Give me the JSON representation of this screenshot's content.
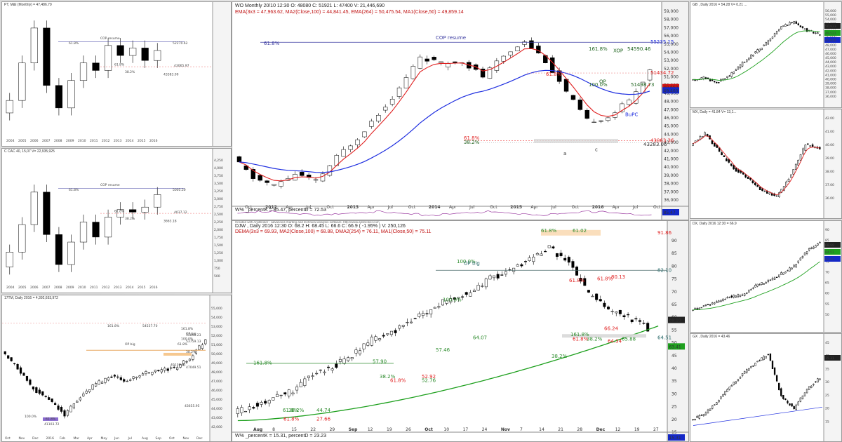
{
  "colors": {
    "red": "#e02020",
    "blue": "#1f2fe0",
    "green": "#1ea01e",
    "candle_down": "#000000",
    "candle_up": "#ffffff",
    "price_tag_blue": "#1428c8",
    "price_tag_green": "#1ea01e",
    "price_tag_red": "#d01414",
    "price_tag_black": "#222222"
  },
  "main_top": {
    "header_line1": "WO Monthly 20/10 12:30 O: 48080  C: 51921  L: 47400  V: 21,446,690",
    "header_line2": "EMA(3x3 = 47,963.62,  MA2(Close,100) = 44,841.45,  EMA(264) = 50,475.54,  MA1(Close,50) = 49,859.14",
    "indicator_label": "W% _percentK = 85.47, percentD = 72.53",
    "indicator_values": [
      "85.47",
      "72.53"
    ],
    "y_ticks": [
      "59,000",
      "58,000",
      "57,000",
      "56,000",
      "55,000",
      "54,000",
      "53,000",
      "52,000",
      "51,000",
      "50,000",
      "49,000",
      "48,000",
      "47,000",
      "46,000",
      "45,000",
      "44,000",
      "43,000",
      "42,000",
      "41,000",
      "40,000",
      "39,000",
      "38,000",
      "37,000",
      "36,000"
    ],
    "x_labels": [
      "Oct",
      "2012",
      "Apr",
      "Jul",
      "Oct",
      "2013",
      "Apr",
      "Jul",
      "Oct",
      "2014",
      "Apr",
      "Jul",
      "Oct",
      "2015",
      "Apr",
      "Jul",
      "Oct",
      "2016",
      "Apr",
      "Jul",
      "Oct"
    ],
    "price_tags": [
      "55235.15",
      "51434.72",
      "49,650",
      "49,460",
      "43063.36",
      "43283.06"
    ],
    "annotations": [
      "COP resume",
      "61.8%",
      "161.8%",
      "XOP",
      "54590.46",
      "61.8%",
      "OP",
      "100.0%",
      "51498.73",
      "BuPC",
      "61.8%",
      "38.2%",
      "a",
      "c",
      "42.90"
    ]
  },
  "main_bottom": {
    "header_line1": "DJW , Daily 2016 12:30 O: 68.2  H: 68.45  L: 66.6  C: 66.9 ( -1.95% )  V: 250,126",
    "header_line2": "DEMA(3x3 = 69.93,  MA2(Close,100) = 68.88,  DMA2(254) = 76.11,  MA1(Close,50) = 75.11",
    "note": "Created with AmiBroker - advanced charting and technical analysis software. http://www.amibroker.com",
    "indicator_label": "W% _percentK = 15.31, percentD = 23.23",
    "y_ticks": [
      "90",
      "85",
      "80",
      "75",
      "70",
      "65",
      "60",
      "55",
      "50",
      "45",
      "40",
      "35",
      "30",
      "25",
      "20",
      "15"
    ],
    "x_labels": [
      "Aug",
      "8",
      "15",
      "22",
      "29",
      "Sep",
      "12",
      "19",
      "26",
      "Oct",
      "10",
      "17",
      "24",
      "Nov",
      "7",
      "14",
      "21",
      "28",
      "Dec",
      "12",
      "19",
      "27"
    ],
    "price_tags": [
      "91.86",
      "82.10",
      "69.10",
      "64.51",
      "63.41",
      "15.31"
    ],
    "annotations": [
      "61.8%",
      "61.02",
      "100.0%",
      "OP big",
      "61.8%",
      "80.13",
      "61.8%",
      "66.24",
      "161.8%",
      "61.8%",
      "38.2%",
      "64.34",
      "65.88",
      "100.0%",
      "64.07",
      "38.2%",
      "57.46",
      "61.8%",
      "52.76",
      "161.8%",
      "57.90",
      "38.2%",
      "52.92",
      "61.8%",
      "27.66",
      "44.74",
      "38.2%",
      "61.8%"
    ]
  },
  "left_panels": [
    {
      "header": "PT, M&I (Monthly) = 47,486.70",
      "years": [
        "2004",
        "2005",
        "2006",
        "2007",
        "2008",
        "2009",
        "2010",
        "2011",
        "2012",
        "2013",
        "2014",
        "2015",
        "2016"
      ],
      "notes": [
        "COP resume",
        "61.8%",
        "52270.62",
        "61.8%",
        "38.2%",
        "43065.97",
        "43383.09"
      ]
    },
    {
      "header": "C  CAC 40, 15,07  V= 22,935,925",
      "years": [
        "2004",
        "2005",
        "2006",
        "2007",
        "2008",
        "2009",
        "2010",
        "2011",
        "2012",
        "2013",
        "2014",
        "2015",
        "2016"
      ],
      "y_ticks": [
        "4,250",
        "4,000",
        "3,750",
        "3,500",
        "3,250",
        "3,000",
        "2,750",
        "2,500",
        "2,250",
        "2,000",
        "1,750",
        "1,500",
        "1,250",
        "1,000",
        "750",
        "500"
      ],
      "notes": [
        "COP resume",
        "61.8%",
        "5005.50",
        "61.8%",
        "38.2%",
        "4037.12",
        "3663.18"
      ]
    },
    {
      "header": "17TM, Daily 2016  = 4,392,653,972",
      "months": [
        "Oct",
        "Nov",
        "Dec",
        "2016",
        "Feb",
        "Mar",
        "Apr",
        "May",
        "Jun",
        "Jul",
        "Aug",
        "Sep",
        "Oct",
        "Nov",
        "Dec"
      ],
      "y_ticks": [
        "55,000",
        "54,000",
        "53,000",
        "52,000",
        "51,000",
        "50,000",
        "49,000",
        "48,000",
        "47,000",
        "46,000",
        "45,000",
        "44,000",
        "43,000",
        "42,000"
      ],
      "notes": [
        "161.8%",
        "54537.70",
        "161.8%",
        "OP big",
        "100.0%",
        "OP big",
        "61.8%",
        "38.2%",
        "49139.83",
        "47049.51",
        "43655.95",
        "100.0%",
        "61.8%",
        "41103.72",
        "54890.23",
        "53759.13"
      ]
    }
  ],
  "right_panels": [
    {
      "header": "GB ,  Daily 2016 = 54.28  V= 0.21 ...",
      "y_ticks": [
        "56,000",
        "55,000",
        "54,000",
        "53,000",
        "52,000",
        "51,000",
        "50,000",
        "49,000",
        "48,000",
        "47,000",
        "46,000",
        "45,000",
        "44,000",
        "43,000",
        "42,000",
        "41,000",
        "40,000",
        "39,000",
        "38,000",
        "37,000",
        "36,000"
      ],
      "tags": [
        "50,823",
        "49,521",
        "45,826"
      ]
    },
    {
      "header": "MX, Daily  = 41.84  V= 13,1...",
      "y_ticks": [
        "42.00",
        "41.00",
        "40.00",
        "39.00",
        "38.00",
        "37.00",
        "36.00"
      ]
    },
    {
      "header": "DX, Daily 2016 12:30  = 66.9",
      "y_ticks": [
        "90",
        "85",
        "80",
        "75",
        "70",
        "65",
        "60",
        "55",
        "50"
      ],
      "tags": [
        "68.99",
        "64.51",
        "63.41"
      ]
    },
    {
      "header": "GX , Daily 2016 = 43.46",
      "y_ticks": [
        "45",
        "40",
        "35",
        "30",
        "25",
        "20",
        "15"
      ],
      "tags": [
        "15.31"
      ]
    }
  ],
  "chart_data": [
    {
      "type": "candlestick",
      "title": "WO Monthly",
      "x": [
        "Oct-11",
        "Jan-12",
        "Apr-12",
        "Jul-12",
        "Oct-12",
        "Jan-13",
        "Apr-13",
        "Jul-13",
        "Oct-13",
        "Jan-14",
        "Apr-14",
        "Jul-14",
        "Oct-14",
        "Jan-15",
        "Apr-15",
        "Jul-15",
        "Oct-15",
        "Jan-16",
        "Apr-16",
        "Jul-16",
        "Oct-16"
      ],
      "close": [
        41000,
        38500,
        37500,
        39000,
        38000,
        41000,
        43500,
        46500,
        49500,
        53500,
        52500,
        53000,
        51000,
        53500,
        55500,
        53000,
        49000,
        45500,
        46000,
        48000,
        51900
      ],
      "series": [
        {
          "name": "EMA(3x3)",
          "color": "red"
        },
        {
          "name": "MA1(Close,50)",
          "color": "blue"
        }
      ],
      "ylim": [
        35500,
        59500
      ]
    },
    {
      "type": "candlestick",
      "title": "DJW Daily 2016",
      "x": [
        "Aug",
        "8",
        "15",
        "22",
        "29",
        "Sep",
        "12",
        "19",
        "26",
        "Oct",
        "10",
        "17",
        "24",
        "Nov",
        "7",
        "14",
        "21",
        "28",
        "Dec",
        "12",
        "19",
        "27"
      ],
      "close": [
        45,
        47,
        49,
        51,
        55,
        57,
        60,
        64,
        66,
        69,
        72,
        75,
        76,
        80,
        82,
        85,
        88,
        84,
        76,
        72,
        70,
        67
      ],
      "series": [
        {
          "name": "MA1(Close,50)",
          "color": "green"
        }
      ],
      "ylim": [
        42,
        92
      ]
    }
  ]
}
